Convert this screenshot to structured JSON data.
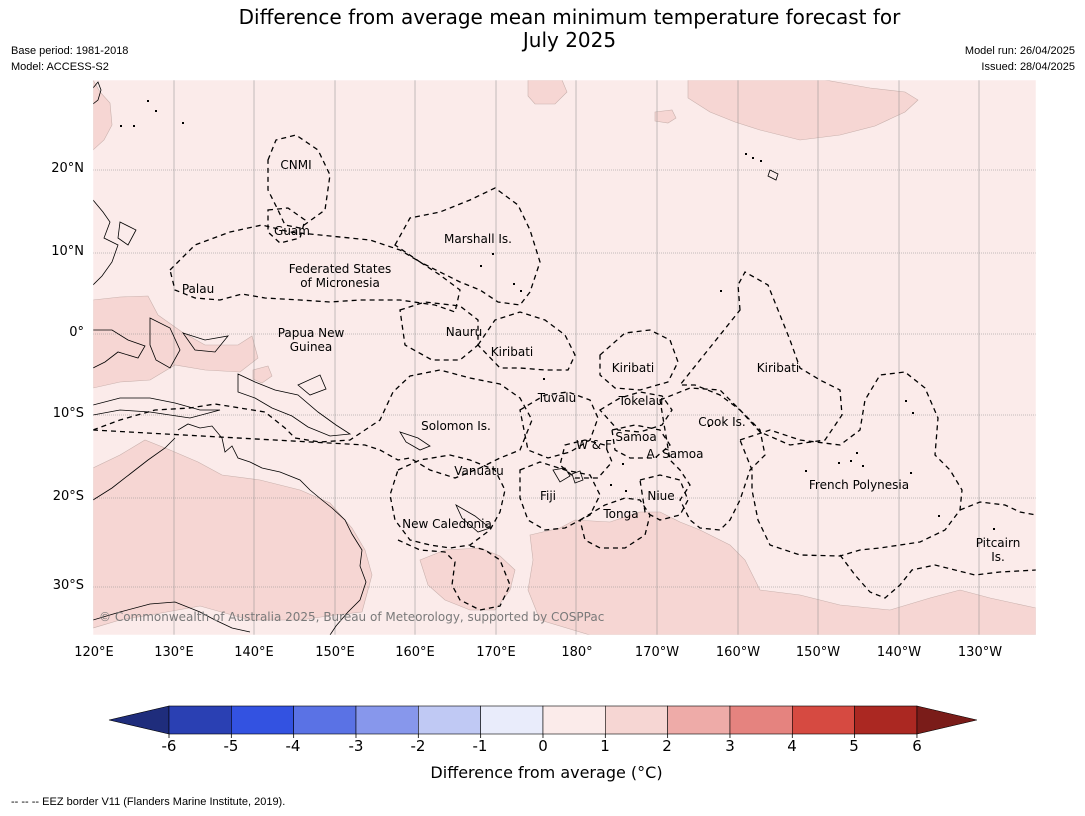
{
  "header": {
    "title_line1": "Difference from average mean minimum temperature forecast for",
    "title_line2": "July 2025",
    "base_period": "Base period: 1981-2018",
    "model": "Model: ACCESS-S2",
    "model_run": "Model run: 26/04/2025",
    "issued": "Issued: 28/04/2025"
  },
  "map": {
    "latitude_labels": [
      "20°N",
      "10°N",
      "0°",
      "10°S",
      "20°S",
      "30°S"
    ],
    "longitude_labels": [
      "120°E",
      "130°E",
      "140°E",
      "150°E",
      "160°E",
      "170°E",
      "180°",
      "170°W",
      "160°W",
      "150°W",
      "140°W",
      "130°W"
    ],
    "places": [
      {
        "name": "CNMI"
      },
      {
        "name": "Guam"
      },
      {
        "name": "Marshall Is."
      },
      {
        "name": "Federated States"
      },
      {
        "name": "of Micronesia"
      },
      {
        "name": "Palau"
      },
      {
        "name": "Nauru"
      },
      {
        "name": "Papua New"
      },
      {
        "name": "Guinea"
      },
      {
        "name": "Kiribati"
      },
      {
        "name": "Kiribati"
      },
      {
        "name": "Kiribati"
      },
      {
        "name": "Tuvalu"
      },
      {
        "name": "Tokelau"
      },
      {
        "name": "Cook Is."
      },
      {
        "name": "Solomon Is."
      },
      {
        "name": "W & F"
      },
      {
        "name": "Samoa"
      },
      {
        "name": "A. Samoa"
      },
      {
        "name": "Vanuatu"
      },
      {
        "name": "Fiji"
      },
      {
        "name": "Niue"
      },
      {
        "name": "French Polynesia"
      },
      {
        "name": "Tonga"
      },
      {
        "name": "New Caledonia"
      },
      {
        "name": "Pitcairn"
      },
      {
        "name": "Is."
      }
    ],
    "copyright": "© Commonwealth of Australia 2025, Bureau of Meteorology, supported by COSPPac",
    "fill_colors": {
      "anomaly_0_to_1": "#fbebea",
      "anomaly_1_to_2": "#f6d6d3"
    }
  },
  "colorbar": {
    "ticks": [
      "-6",
      "-5",
      "-4",
      "-3",
      "-2",
      "-1",
      "0",
      "1",
      "2",
      "3",
      "4",
      "5",
      "6"
    ],
    "colors": [
      "#1f2d7c",
      "#2a40b3",
      "#3352e1",
      "#5a72e5",
      "#8797ec",
      "#c0c9f4",
      "#e9ecfb",
      "#fbebea",
      "#f6d6d3",
      "#eeaba8",
      "#e5837f",
      "#d64a41",
      "#ab2822",
      "#7a1c19"
    ],
    "title": "Difference from average (°C)"
  },
  "footnote": "--  --  -- EEZ border V11 (Flanders Marine Institute, 2019)."
}
